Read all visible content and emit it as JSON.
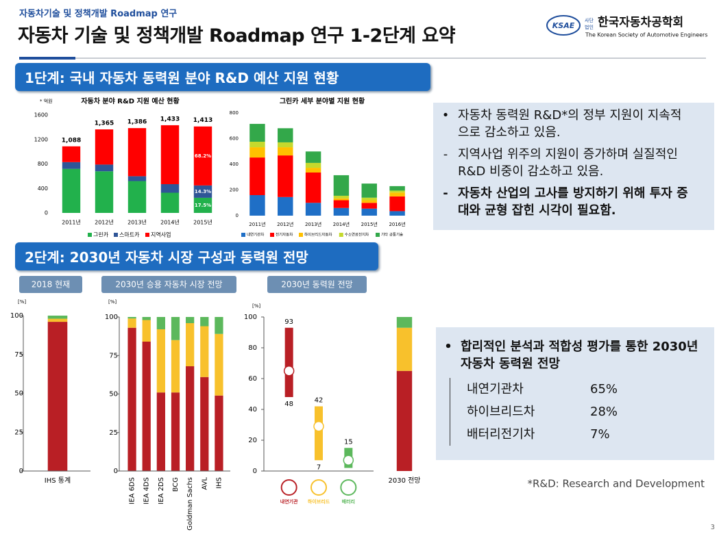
{
  "header": {
    "kicker": "자동차기술 및 정책개발 Roadmap 연구",
    "title": "자동차 기술 및 정책개발 Roadmap 연구 1-2단계 요약",
    "logo": {
      "mark": "KSAE",
      "prefix": [
        "사단",
        "법인"
      ],
      "name": "한국자동차공학회",
      "english": "The Korean Society of Automotive Engineers"
    }
  },
  "sections": [
    "1단계: 국내 자동차 동력원 분야 R&D 예산 지원 현황",
    "2단계: 2030년 자동차 시장 구성과 동력원 전망"
  ],
  "chart_data": [
    {
      "type": "bar",
      "stacked": true,
      "title": "자동차 분야 R&D 지원 예산 현황",
      "unit": "* 억원",
      "categories": [
        "2011년",
        "2012년",
        "2013년",
        "2014년",
        "2015년"
      ],
      "series": [
        {
          "name": "그린카",
          "color": "#22b14c",
          "values": [
            720,
            680,
            520,
            330,
            247
          ]
        },
        {
          "name": "스마트카",
          "color": "#2f5597",
          "values": [
            110,
            110,
            80,
            140,
            202
          ]
        },
        {
          "name": "지역사업",
          "color": "#ff0000",
          "values": [
            258,
            575,
            786,
            963,
            964
          ]
        }
      ],
      "total_labels": [
        "1,088",
        "1,365",
        "1,386",
        "1,433",
        "1,413"
      ],
      "share_labels": [
        "17.5%",
        "14.3%",
        "68.2%"
      ],
      "ylim": [
        0,
        1600
      ],
      "yticks": [
        0,
        400,
        800,
        1200,
        1600
      ],
      "legend": "bottom"
    },
    {
      "type": "bar",
      "stacked": true,
      "title": "그린카 세부 분야별 지원 현황",
      "categories": [
        "2011년",
        "2012년",
        "2013년",
        "2014년",
        "2015년",
        "2016년"
      ],
      "series": [
        {
          "name": "내연기관차",
          "color": "#1f6fc6",
          "values": [
            160,
            145,
            100,
            60,
            55,
            35
          ]
        },
        {
          "name": "전기자동차",
          "color": "#ff0000",
          "values": [
            293,
            324,
            236,
            60,
            45,
            115
          ]
        },
        {
          "name": "하이브리드자동차",
          "color": "#ffc000",
          "values": [
            80,
            64,
            37,
            15,
            20,
            30
          ]
        },
        {
          "name": "수소연료전지차",
          "color": "#c5d92d",
          "values": [
            43,
            38,
            38,
            20,
            20,
            15
          ]
        },
        {
          "name": "기타 공통기술",
          "color": "#33a84a",
          "values": [
            139,
            110,
            89,
            160,
            110,
            35
          ]
        }
      ],
      "ylim": [
        0,
        800
      ],
      "yticks": [
        0,
        200,
        400,
        600,
        800
      ],
      "legend": "bottom"
    },
    {
      "type": "bar",
      "stacked": true,
      "title": "2018 현재",
      "unit": "[%]",
      "categories": [
        "IHS 통계"
      ],
      "series": [
        {
          "color": "#b91f25",
          "values": [
            96
          ]
        },
        {
          "color": "#f8c12c",
          "values": [
            2
          ]
        },
        {
          "color": "#5cb85c",
          "values": [
            2
          ]
        }
      ],
      "ylim": [
        0,
        100
      ],
      "yticks": [
        0,
        25,
        50,
        75,
        100
      ]
    },
    {
      "type": "bar",
      "stacked": true,
      "title": "2030년 승용 자동차 시장 전망",
      "unit": "[%]",
      "categories": [
        "IEA 6DS",
        "IEA 4DS",
        "IEA 2DS",
        "BCG",
        "Goldman Sachs",
        "AVL",
        "IHS"
      ],
      "series": [
        {
          "color": "#b91f25",
          "values": [
            93,
            84,
            51,
            51,
            68,
            61,
            49
          ]
        },
        {
          "color": "#f8c12c",
          "values": [
            6,
            14,
            41,
            34,
            28,
            33,
            40
          ]
        },
        {
          "color": "#5cb85c",
          "values": [
            1,
            2,
            8,
            15,
            4,
            6,
            11
          ]
        }
      ],
      "ylim": [
        0,
        100
      ],
      "yticks": [
        0,
        25,
        50,
        75,
        100
      ]
    },
    {
      "type": "range",
      "title": "2030년 동력원 전망",
      "unit": "[%]",
      "categories": [
        "내연기관",
        "하이브리드",
        "배터리"
      ],
      "ranges": [
        {
          "color": "#b91f25",
          "high": 93,
          "low": 48,
          "mid": 65,
          "value_labels": [
            "93",
            "48"
          ]
        },
        {
          "color": "#f8c12c",
          "high": 42,
          "low": 7,
          "mid": 29,
          "value_labels": [
            "42",
            "7"
          ]
        },
        {
          "color": "#5cb85c",
          "high": 15,
          "low": 2,
          "mid": 7,
          "value_labels": [
            "15",
            null
          ]
        }
      ],
      "ylim": [
        0,
        100
      ],
      "yticks": [
        0,
        20,
        40,
        60,
        80,
        100
      ]
    },
    {
      "type": "bar",
      "stacked": true,
      "categories": [
        "2030 전망"
      ],
      "series": [
        {
          "color": "#b91f25",
          "values": [
            65
          ]
        },
        {
          "color": "#f8c12c",
          "values": [
            28
          ]
        },
        {
          "color": "#5cb85c",
          "values": [
            7
          ]
        }
      ],
      "ylim": [
        0,
        100
      ]
    }
  ],
  "summary_1": {
    "items": [
      {
        "marker": "•",
        "text": "자동차 동력원 R&D*의 정부 지원이 지속적으로 감소하고 있음."
      },
      {
        "marker": "-",
        "text": "지역사업 위주의 지원이 증가하며 실질적인 R&D 비중이 감소하고 있음."
      },
      {
        "marker": "-",
        "text": "자동차 산업의 고사를 방지하기 위해 투자 증대와 균형 잡힌 시각이 필요함."
      }
    ]
  },
  "summary_2": {
    "marker": "•",
    "heading": "합리적인 분석과 적합성 평가를 통한 2030년 자동차 동력원 전망",
    "rows": [
      [
        "내연기관차",
        "65%"
      ],
      [
        "하이브리드차",
        "28%"
      ],
      [
        "배터리전기차",
        "7%"
      ]
    ]
  },
  "footnote": "*R&D: Research and Development",
  "page_number": "3"
}
